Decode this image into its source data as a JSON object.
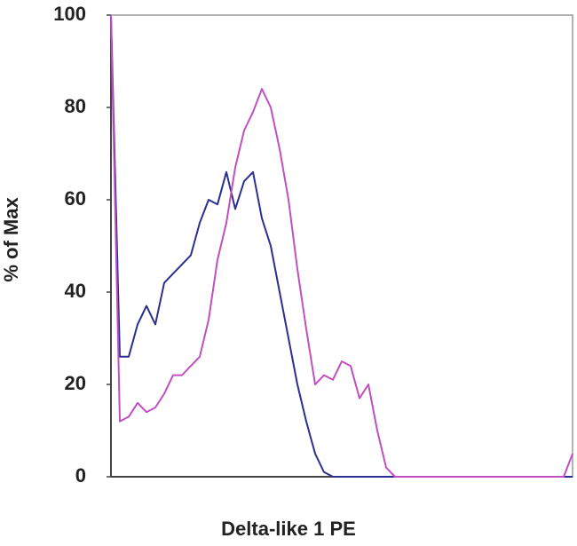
{
  "chart_data": {
    "type": "line",
    "xlabel": "Delta-like 1 PE",
    "ylabel": "% of Max",
    "categories": [
      null,
      null,
      null,
      null,
      null,
      null,
      null,
      null,
      null,
      null,
      null,
      null,
      null,
      null,
      null,
      null,
      null,
      null,
      null,
      null,
      null,
      null,
      null,
      null,
      null,
      null,
      null,
      null,
      null,
      null,
      null,
      null,
      null,
      null,
      null,
      null,
      null,
      null,
      null,
      null,
      null,
      null,
      null,
      null,
      null,
      null,
      null,
      null,
      null,
      null,
      null,
      null,
      null
    ],
    "series": [
      {
        "color": "#2b2f8f",
        "values": [
          100,
          26,
          26,
          33,
          37,
          33,
          42,
          44,
          46,
          48,
          55,
          60,
          59,
          66,
          58,
          64,
          66,
          56,
          50,
          40,
          30,
          20,
          12,
          5,
          1,
          0,
          0,
          0,
          0,
          0,
          0,
          0,
          0,
          0,
          0,
          0,
          0,
          0,
          0,
          0,
          0,
          0,
          0,
          0,
          0,
          0,
          0,
          0,
          0,
          0,
          0,
          0,
          0
        ]
      },
      {
        "color": "#c24fc0",
        "values": [
          100,
          12,
          13,
          16,
          14,
          15,
          18,
          22,
          22,
          24,
          26,
          34,
          47,
          55,
          67,
          75,
          79,
          84,
          80,
          71,
          60,
          45,
          32,
          20,
          22,
          21,
          25,
          24,
          17,
          20,
          10,
          2,
          0,
          0,
          0,
          0,
          0,
          0,
          0,
          0,
          0,
          0,
          0,
          0,
          0,
          0,
          0,
          0,
          0,
          0,
          0,
          0,
          5
        ]
      }
    ],
    "ylim": [
      0,
      100
    ],
    "yticks": [
      0,
      20,
      40,
      60,
      80,
      100
    ]
  }
}
